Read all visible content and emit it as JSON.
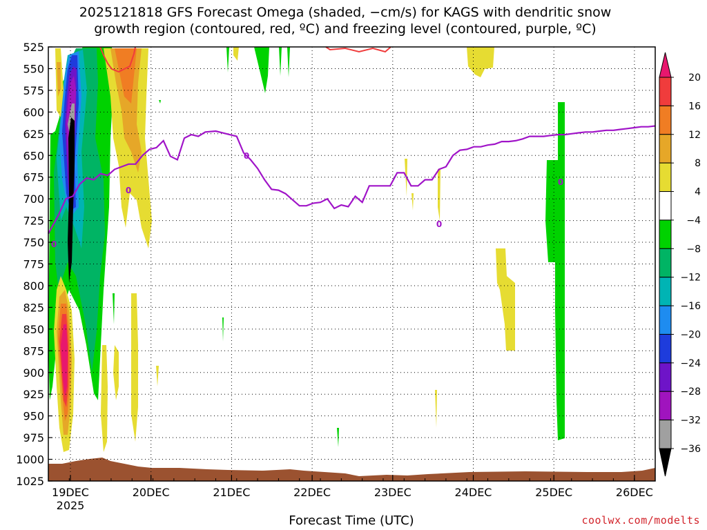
{
  "title_line1": "2025121818 GFS Forecast Omega (shaded, −cm/s) for KAGS with dendritic snow",
  "title_line2": "growth region (contoured, red, ºC) and freezing level (contoured, purple, ºC)",
  "x_axis_title": "Forecast Time (UTC)",
  "credit": "coolwx.com/modelts",
  "chart_data": {
    "type": "heatmap",
    "title": "2025121818 GFS Forecast Omega (shaded, −cm/s) for KAGS with dendritic snow growth region (contoured, red, ºC) and freezing level (contoured, purple, ºC)",
    "xlabel": "Forecast Time (UTC)",
    "ylabel": "",
    "y_scale": "pressure (hPa), inverted",
    "ylim": [
      1025,
      525
    ],
    "y_ticks": [
      525,
      550,
      575,
      600,
      625,
      650,
      675,
      700,
      725,
      750,
      775,
      800,
      825,
      850,
      875,
      900,
      925,
      950,
      975,
      1000,
      1025
    ],
    "x_ticks": [
      "19DEC",
      "20DEC",
      "21DEC",
      "22DEC",
      "23DEC",
      "24DEC",
      "25DEC",
      "26DEC"
    ],
    "x_year_label": "2025",
    "x_range_hours": [
      0,
      174
    ],
    "colorbar": {
      "ticks": [
        "20",
        "16",
        "12",
        "8",
        "4",
        "−4",
        "−8",
        "−12",
        "−16",
        "−20",
        "−24",
        "−28",
        "−32",
        "−36"
      ],
      "bins": [
        {
          "range": ">20",
          "color": "#e8176e"
        },
        {
          "range": "16 to 20",
          "color": "#f03c3c"
        },
        {
          "range": "12 to 16",
          "color": "#f07d23"
        },
        {
          "range": "8 to 12",
          "color": "#e6a728"
        },
        {
          "range": "4 to 8",
          "color": "#e6dc32"
        },
        {
          "range": "-4 to 4",
          "color": "#ffffff"
        },
        {
          "range": "-8 to -4",
          "color": "#00d200"
        },
        {
          "range": "-12 to -8",
          "color": "#00b464"
        },
        {
          "range": "-16 to -12",
          "color": "#00b4b4"
        },
        {
          "range": "-20 to -16",
          "color": "#1e8cf0"
        },
        {
          "range": "-24 to -20",
          "color": "#1e3cdc"
        },
        {
          "range": "-28 to -24",
          "color": "#6e14c8"
        },
        {
          "range": "-32 to -28",
          "color": "#a014be"
        },
        {
          "range": "-36 to -32",
          "color": "#a0a0a0"
        },
        {
          "range": "<-36",
          "color": "#000000"
        }
      ]
    },
    "freezing_level": {
      "label": "0",
      "color": "#a014c8",
      "hours": [
        0,
        3,
        5,
        7,
        9,
        11,
        13,
        15,
        17,
        19,
        21,
        23,
        25,
        27,
        29,
        31,
        33,
        35,
        37,
        39,
        41,
        43,
        45,
        48,
        51,
        54,
        56,
        58,
        60,
        62,
        64,
        66,
        68,
        70,
        72,
        74,
        76,
        78,
        80,
        82,
        84,
        86,
        88,
        90,
        92,
        94,
        96,
        98,
        100,
        102,
        104,
        106,
        108,
        110,
        112,
        114,
        116,
        118,
        120,
        122,
        124,
        126,
        128,
        130,
        132,
        134,
        136,
        138,
        140,
        142,
        144,
        146,
        148,
        150,
        152,
        154,
        156,
        158,
        160,
        162,
        164,
        166,
        168,
        170,
        172,
        174
      ],
      "pressure": [
        740,
        718,
        700,
        697,
        683,
        676,
        678,
        671,
        673,
        666,
        663,
        660,
        660,
        650,
        643,
        641,
        633,
        651,
        655,
        630,
        626,
        628,
        623,
        622,
        625,
        628,
        647,
        655,
        665,
        678,
        689,
        690,
        694,
        701,
        708,
        708,
        705,
        704,
        700,
        711,
        707,
        709,
        697,
        704,
        685,
        685,
        685,
        685,
        670,
        670,
        685,
        685,
        678,
        678,
        666,
        663,
        650,
        644,
        643,
        640,
        640,
        638,
        637,
        634,
        634,
        633,
        631,
        628,
        628,
        628,
        627,
        626,
        626,
        625,
        624,
        623,
        623,
        622,
        621,
        621,
        620,
        619,
        618,
        617,
        617,
        616
      ]
    },
    "dgz_contour": {
      "color": "#f03c3c",
      "note": "red contour near top of domain (525–560 hPa)"
    },
    "surface_terrain_color": "#9b5230"
  }
}
